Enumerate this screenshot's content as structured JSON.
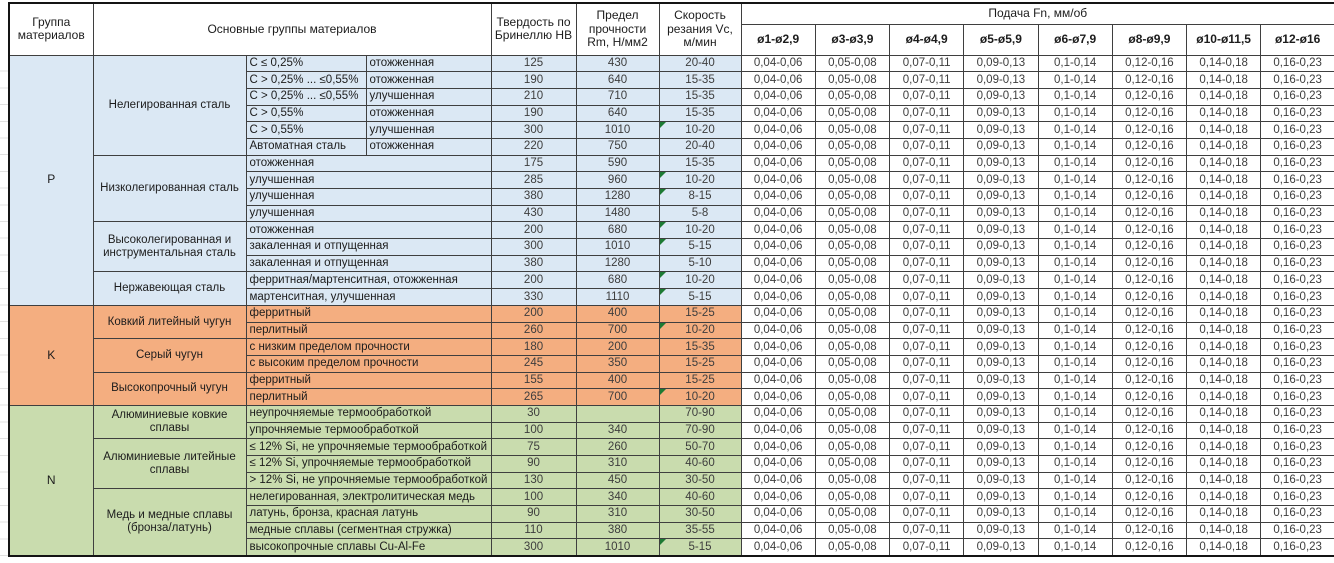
{
  "header": {
    "col_group": "Группа материалов",
    "col_materials": "Основные группы материалов",
    "col_hardness": "Твердость по Бринеллю HB",
    "col_strength": "Предел прочности Rm, Н/мм2",
    "col_speed": "Скорость резания Vc, м/мин",
    "feed_title": "Подача Fn, мм/об",
    "feed_cols": [
      "ø1-ø2,9",
      "ø3-ø3,9",
      "ø4-ø4,9",
      "ø5-ø5,9",
      "ø6-ø7,9",
      "ø8-ø9,9",
      "ø10-ø11,5",
      "ø12-ø16"
    ]
  },
  "feed_values": [
    "0,04-0,06",
    "0,05-0,08",
    "0,07-0,11",
    "0,09-0,13",
    "0,1-0,14",
    "0,12-0,16",
    "0,14-0,18",
    "0,16-0,23"
  ],
  "colors": {
    "group_p": "#dbe8f4",
    "group_k": "#f4ae80",
    "group_n": "#c9dcae",
    "marker_green": "#1d7a33",
    "border": "#3f3f3f"
  },
  "groups": [
    {
      "code": "P",
      "color_key": "group_p",
      "categories": [
        {
          "name": "Нелегированная сталь",
          "rows": [
            {
              "sub": "C ≤ 0,25%",
              "state": "отожженная",
              "hb": "125",
              "rm": "430",
              "vc": "20-40",
              "marker": false
            },
            {
              "sub": "C > 0,25% ... ≤0,55%",
              "state": "отожженная",
              "hb": "190",
              "rm": "640",
              "vc": "15-35",
              "marker": false
            },
            {
              "sub": "C > 0,25% ... ≤0,55%",
              "state": "улучшенная",
              "hb": "210",
              "rm": "710",
              "vc": "15-35",
              "marker": false
            },
            {
              "sub": "C > 0,55%",
              "state": "отожженная",
              "hb": "190",
              "rm": "640",
              "vc": "15-35",
              "marker": false
            },
            {
              "sub": "C > 0,55%",
              "state": "улучшенная",
              "hb": "300",
              "rm": "1010",
              "vc": "10-20",
              "marker": true
            },
            {
              "sub": "Автоматная сталь",
              "state": "отожженная",
              "hb": "220",
              "rm": "750",
              "vc": "20-40",
              "marker": false
            }
          ]
        },
        {
          "name": "Низколегированная сталь",
          "rows": [
            {
              "desc": "отожженная",
              "hb": "175",
              "rm": "590",
              "vc": "15-35",
              "marker": false
            },
            {
              "desc": "улучшенная",
              "hb": "285",
              "rm": "960",
              "vc": "10-20",
              "marker": true
            },
            {
              "desc": "улучшенная",
              "hb": "380",
              "rm": "1280",
              "vc": "8-15",
              "marker": true
            },
            {
              "desc": "улучшенная",
              "hb": "430",
              "rm": "1480",
              "vc": "5-8",
              "marker": false
            }
          ]
        },
        {
          "name": "Высоколегированная и инструментальная сталь",
          "rows": [
            {
              "desc": "отожженная",
              "hb": "200",
              "rm": "680",
              "vc": "10-20",
              "marker": true
            },
            {
              "desc": "закаленная и отпущенная",
              "hb": "300",
              "rm": "1010",
              "vc": "5-15",
              "marker": true
            },
            {
              "desc": "закаленная и отпущенная",
              "hb": "380",
              "rm": "1280",
              "vc": "5-10",
              "marker": false
            }
          ]
        },
        {
          "name": "Нержавеющая сталь",
          "rows": [
            {
              "desc": "ферритная/мартенситная, отожженная",
              "hb": "200",
              "rm": "680",
              "vc": "10-20",
              "marker": true
            },
            {
              "desc": "мартенситная, улучшенная",
              "hb": "330",
              "rm": "1110",
              "vc": "5-15",
              "marker": true
            }
          ]
        }
      ]
    },
    {
      "code": "K",
      "color_key": "group_k",
      "categories": [
        {
          "name": "Ковкий литейный чугун",
          "rows": [
            {
              "desc": "ферритный",
              "hb": "200",
              "rm": "400",
              "vc": "15-25",
              "marker": false
            },
            {
              "desc": "перлитный",
              "hb": "260",
              "rm": "700",
              "vc": "10-20",
              "marker": true
            }
          ]
        },
        {
          "name": "Серый чугун",
          "rows": [
            {
              "desc": "с низким пределом прочности",
              "hb": "180",
              "rm": "200",
              "vc": "15-35",
              "marker": false
            },
            {
              "desc": "с высоким пределом прочности",
              "hb": "245",
              "rm": "350",
              "vc": "15-25",
              "marker": false
            }
          ]
        },
        {
          "name": "Высокопрочный чугун",
          "rows": [
            {
              "desc": "ферритный",
              "hb": "155",
              "rm": "400",
              "vc": "15-25",
              "marker": false
            },
            {
              "desc": "перлитный",
              "hb": "265",
              "rm": "700",
              "vc": "10-20",
              "marker": true
            }
          ]
        }
      ]
    },
    {
      "code": "N",
      "color_key": "group_n",
      "categories": [
        {
          "name": "Алюминиевые ковкие сплавы",
          "rows": [
            {
              "desc": "неупрочняемые термообработкой",
              "hb": "30",
              "rm": "",
              "vc": "70-90",
              "marker": false
            },
            {
              "desc": "упрочняемые термообработкой",
              "hb": "100",
              "rm": "340",
              "vc": "70-90",
              "marker": false
            }
          ]
        },
        {
          "name": "Алюминиевые литейные сплавы",
          "rows": [
            {
              "desc": "≤ 12% Si, не упрочняемые термообработкой",
              "hb": "75",
              "rm": "260",
              "vc": "50-70",
              "marker": false
            },
            {
              "desc": "≤ 12% Si, упрочняемые термообработкой",
              "hb": "90",
              "rm": "310",
              "vc": "40-60",
              "marker": false
            },
            {
              "desc": "> 12% Si, не упрочняемые термообработкой",
              "hb": "130",
              "rm": "450",
              "vc": "30-50",
              "marker": false
            }
          ]
        },
        {
          "name": "Медь и медные сплавы (бронза/латунь)",
          "rows": [
            {
              "desc": "нелегированная, электролитическая медь",
              "hb": "100",
              "rm": "340",
              "vc": "40-60",
              "marker": false
            },
            {
              "desc": "латунь, бронза, красная латунь",
              "hb": "90",
              "rm": "310",
              "vc": "30-50",
              "marker": false
            },
            {
              "desc": "медные сплавы (сегментная стружка)",
              "hb": "110",
              "rm": "380",
              "vc": "35-55",
              "marker": false
            },
            {
              "desc": "высокопрочные сплавы Cu-Al-Fe",
              "hb": "300",
              "rm": "1010",
              "vc": "5-15",
              "marker": true
            }
          ]
        }
      ]
    }
  ]
}
